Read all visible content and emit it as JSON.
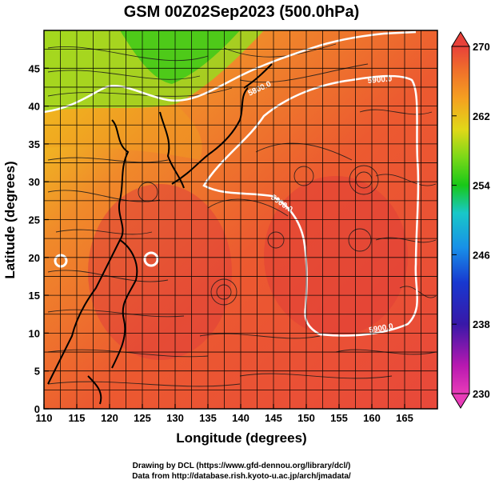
{
  "title": "GSM 00Z02Sep2023 (500.0hPa)",
  "xlabel": "Longitude (degrees)",
  "ylabel": "Latitude  (degrees)",
  "x_ticks": [
    "110",
    "115",
    "120",
    "125",
    "130",
    "135",
    "140",
    "145",
    "150",
    "155",
    "160",
    "165"
  ],
  "y_ticks": [
    "0",
    "5",
    "10",
    "15",
    "20",
    "25",
    "30",
    "35",
    "40",
    "45"
  ],
  "colorbar": {
    "ticks": [
      "270",
      "262",
      "254",
      "246",
      "238",
      "230"
    ],
    "colors": [
      "#e8413a",
      "#f0702a",
      "#f5a020",
      "#d8d818",
      "#7ad818",
      "#18c818",
      "#18c8a0",
      "#18b8e8",
      "#1878e8",
      "#1838c8",
      "#3818a8",
      "#8818b8",
      "#d818b0",
      "#e840b8"
    ]
  },
  "contour_labels": [
    "5800.0",
    "5900.0",
    "5900.0",
    "5900.0"
  ],
  "credits": [
    "Drawing by DCL (https://www.gfd-dennou.org/library/dcl/)",
    "Data from http://database.rish.kyoto-u.ac.jp/arch/jmadata/"
  ],
  "chart_data": {
    "type": "heatmap",
    "title": "GSM 00Z02Sep2023 (500.0hPa)",
    "xlabel": "Longitude (degrees)",
    "ylabel": "Latitude  (degrees)",
    "xlim": [
      110,
      170
    ],
    "ylim": [
      0,
      50
    ],
    "color_range": [
      230,
      270
    ],
    "contour_levels": [
      5800.0,
      5900.0
    ],
    "grid": true
  }
}
